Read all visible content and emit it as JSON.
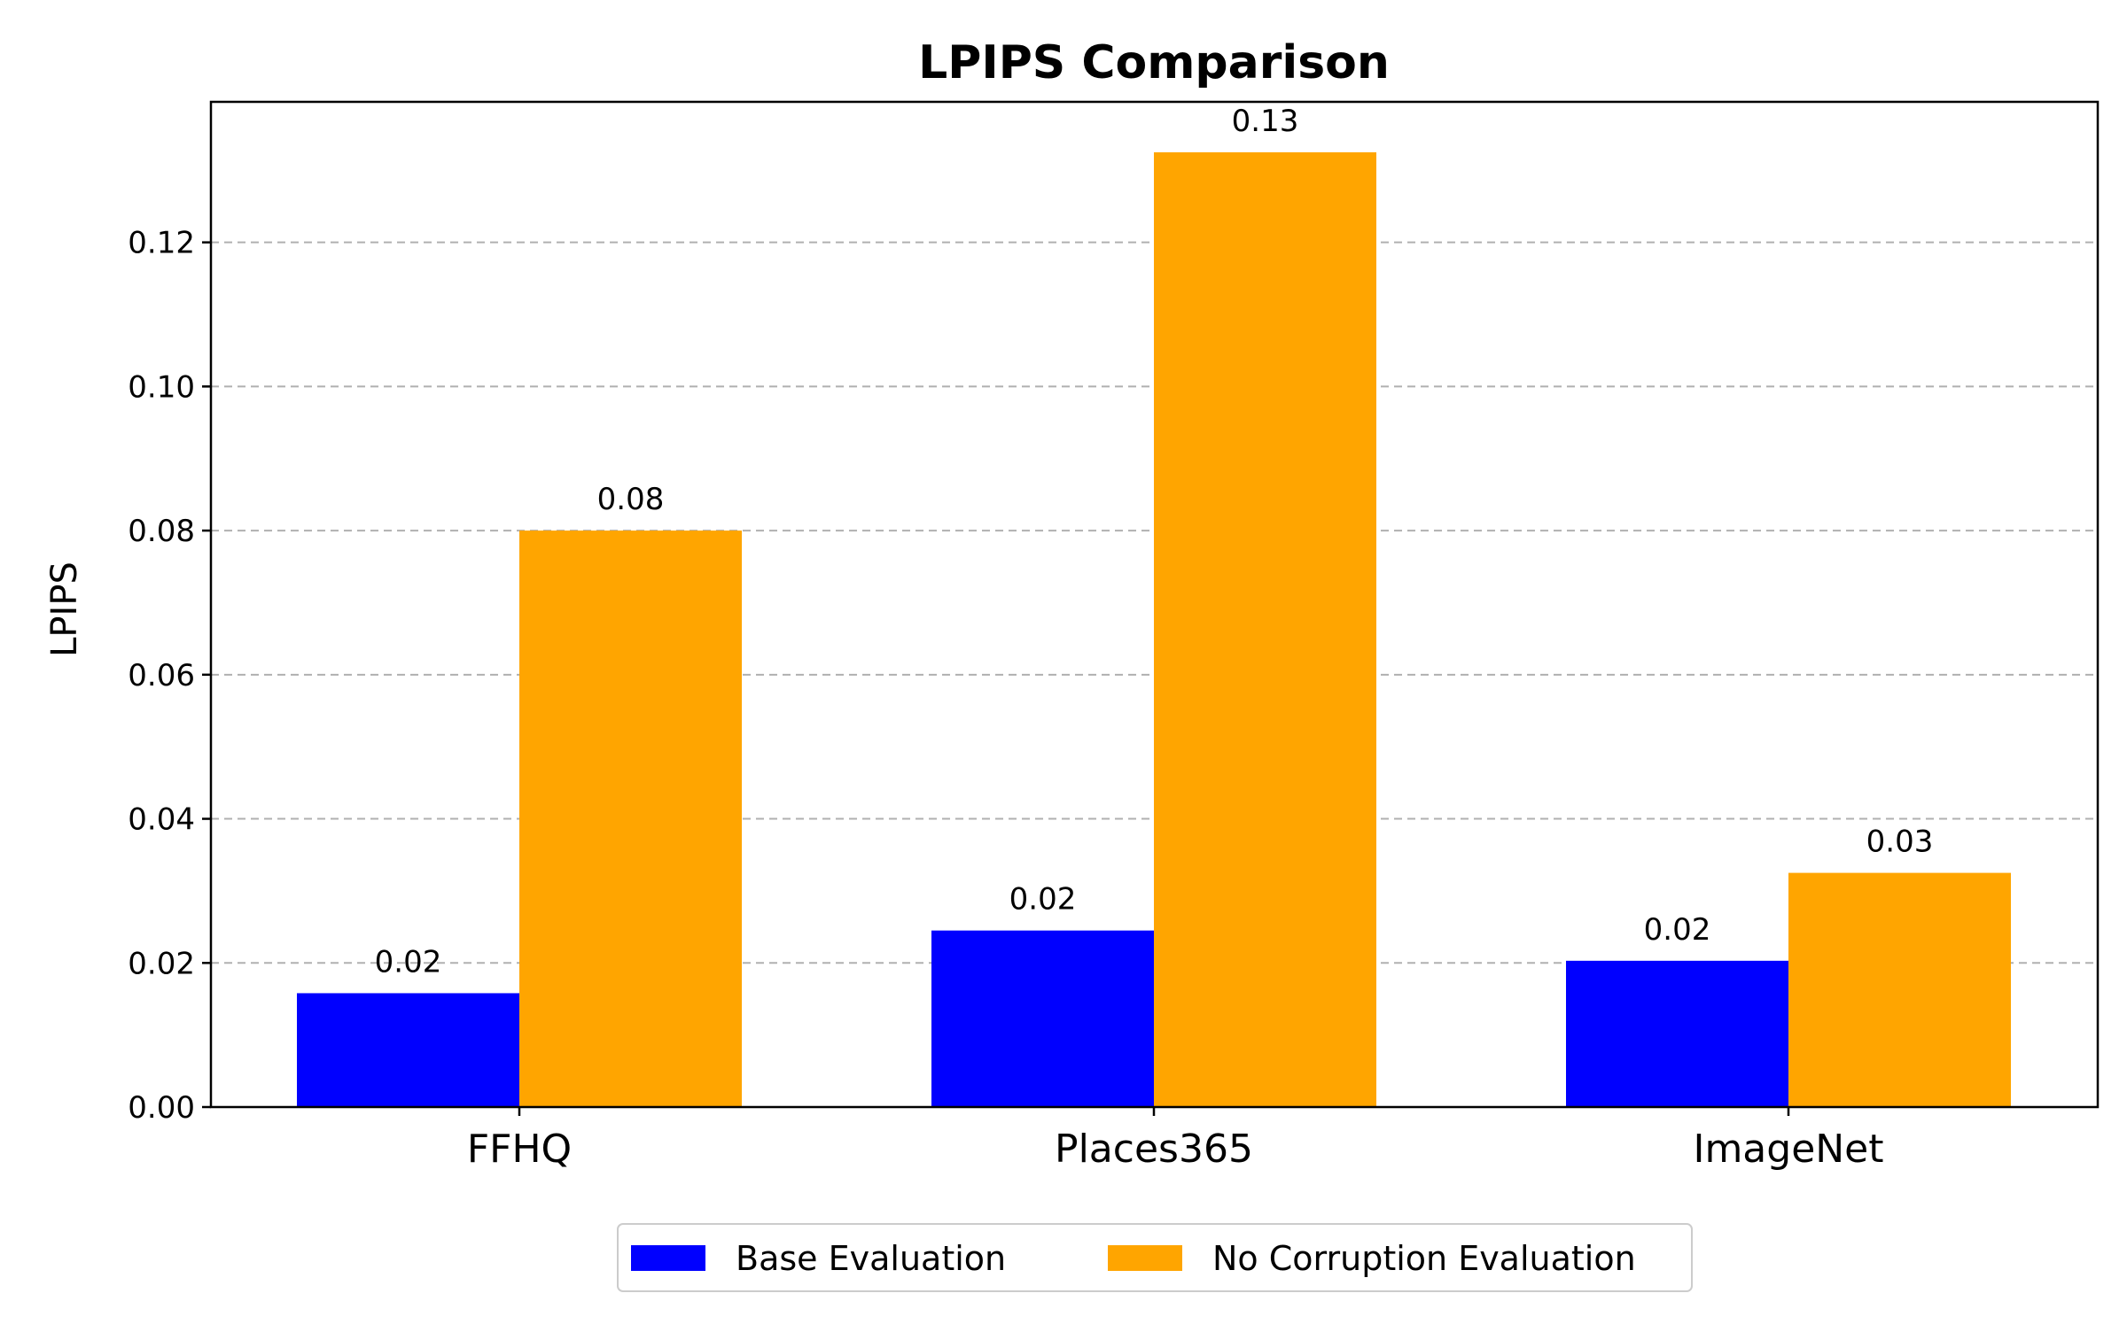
{
  "chart_data": {
    "type": "bar",
    "title": "LPIPS Comparison",
    "xlabel": "",
    "ylabel": "LPIPS",
    "categories": [
      "FFHQ",
      "Places365",
      "ImageNet"
    ],
    "series": [
      {
        "name": "Base Evaluation",
        "color": "#0000ff",
        "values": [
          0.0158,
          0.0245,
          0.0203
        ],
        "labels": [
          "0.02",
          "0.02",
          "0.02"
        ]
      },
      {
        "name": "No Corruption Evaluation",
        "color": "#ffa500",
        "values": [
          0.08,
          0.1325,
          0.0325
        ],
        "labels": [
          "0.08",
          "0.13",
          "0.03"
        ]
      }
    ],
    "ylim": [
      0,
      0.1395
    ],
    "yticks": [
      "0.00",
      "0.02",
      "0.04",
      "0.06",
      "0.08",
      "0.10",
      "0.12"
    ],
    "grid": "y-dashed",
    "legend_position": "bottom-center"
  }
}
